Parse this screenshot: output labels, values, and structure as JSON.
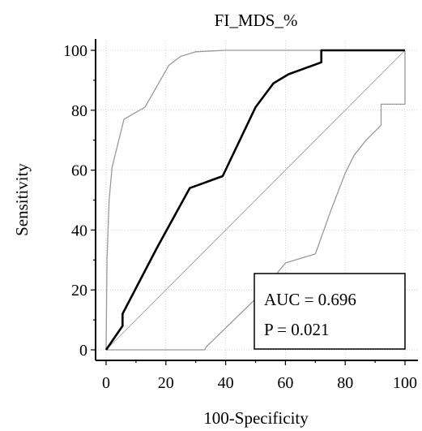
{
  "chart_data": {
    "type": "line",
    "title": "FI_MDS_%",
    "xlabel": "100-Specificity",
    "ylabel": "Sensitivity",
    "xlim": [
      0,
      100
    ],
    "ylim": [
      0,
      100
    ],
    "xticks": [
      0,
      20,
      40,
      60,
      80,
      100
    ],
    "yticks": [
      0,
      20,
      40,
      60,
      80,
      100
    ],
    "grid": true,
    "series": [
      {
        "role": "roc",
        "color": "#000000",
        "x": [
          0,
          5.5,
          5.5,
          17,
          28,
          39,
          50,
          56,
          61,
          72,
          72,
          100
        ],
        "y": [
          0,
          8,
          12,
          34,
          54,
          58,
          81,
          89,
          92,
          96,
          100,
          100
        ]
      },
      {
        "role": "upper-ci",
        "color": "#999999",
        "x": [
          0,
          0.3,
          1,
          2,
          6,
          13,
          17,
          21,
          25,
          30,
          40,
          72,
          100
        ],
        "y": [
          0,
          30,
          50,
          61,
          77,
          81,
          88,
          95,
          98,
          99.5,
          100,
          100,
          100
        ]
      },
      {
        "role": "lower-ci",
        "color": "#999999",
        "x": [
          0,
          33,
          33.5,
          50,
          60,
          70,
          75,
          80,
          83,
          87,
          92,
          92,
          100,
          100
        ],
        "y": [
          0,
          0,
          1,
          17,
          29,
          32,
          46,
          59,
          65,
          70,
          75,
          82,
          82,
          100
        ]
      },
      {
        "role": "reference",
        "color": "#999999",
        "x": [
          0,
          100
        ],
        "y": [
          0,
          100
        ]
      }
    ],
    "annotations": {
      "auc": "AUC = 0.696",
      "p": "P = 0.021"
    }
  }
}
